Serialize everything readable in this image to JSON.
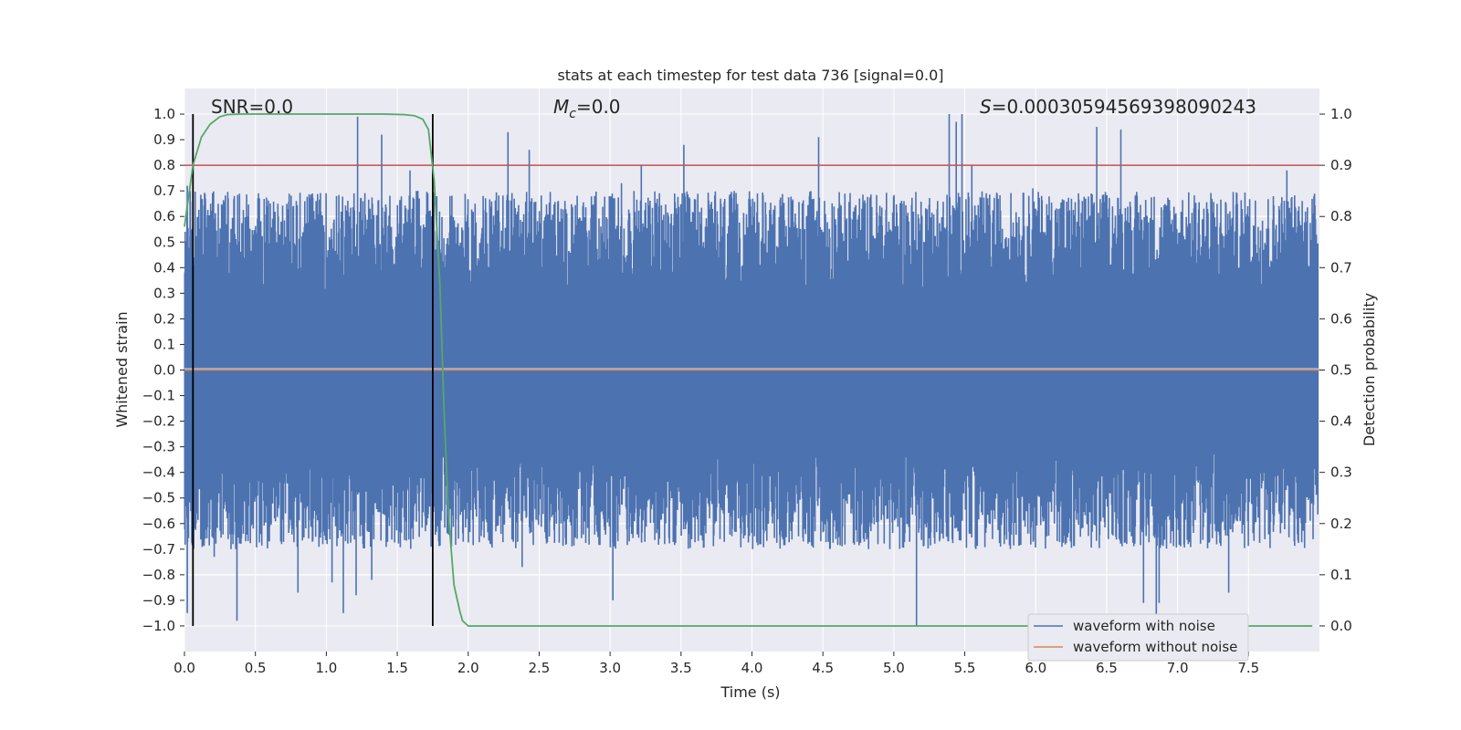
{
  "chart_data": {
    "type": "line",
    "title": "stats at each timestep for test data 736 [signal=0.0]",
    "xlabel": "Time (s)",
    "ylabel": "Whitened strain",
    "y2label": "Detection probability",
    "xlim": [
      0.0,
      8.0
    ],
    "ylim": [
      -1.1,
      1.1
    ],
    "y2lim": [
      -0.05,
      1.05
    ],
    "xticks": [
      "0.0",
      "0.5",
      "1.0",
      "1.5",
      "2.0",
      "2.5",
      "3.0",
      "3.5",
      "4.0",
      "4.5",
      "5.0",
      "5.5",
      "6.0",
      "6.5",
      "7.0",
      "7.5"
    ],
    "xtick_values": [
      0.0,
      0.5,
      1.0,
      1.5,
      2.0,
      2.5,
      3.0,
      3.5,
      4.0,
      4.5,
      5.0,
      5.5,
      6.0,
      6.5,
      7.0,
      7.5
    ],
    "yticks": [
      "1.0",
      "0.9",
      "0.8",
      "0.7",
      "0.6",
      "0.5",
      "0.4",
      "0.3",
      "0.2",
      "0.1",
      "0.0",
      "−0.1",
      "−0.2",
      "−0.3",
      "−0.4",
      "−0.5",
      "−0.6",
      "−0.7",
      "−0.8",
      "−0.9",
      "−1.0"
    ],
    "ytick_values": [
      1.0,
      0.9,
      0.8,
      0.7,
      0.6,
      0.5,
      0.4,
      0.3,
      0.2,
      0.1,
      0.0,
      -0.1,
      -0.2,
      -0.3,
      -0.4,
      -0.5,
      -0.6,
      -0.7,
      -0.8,
      -0.9,
      -1.0
    ],
    "y2ticks": [
      "1.0",
      "0.9",
      "0.8",
      "0.7",
      "0.6",
      "0.5",
      "0.4",
      "0.3",
      "0.2",
      "0.1",
      "0.0"
    ],
    "y2tick_values": [
      1.0,
      0.9,
      0.8,
      0.7,
      0.6,
      0.5,
      0.4,
      0.3,
      0.2,
      0.1,
      0.0
    ],
    "annotations": {
      "snr": "SNR=0.0",
      "mc_symbol": "M",
      "mc_sub": "c",
      "mc_value": "=0.0",
      "s_symbol": "S",
      "s_value": "=0.0003059456939809​0243"
    },
    "legend": {
      "placement": "bottom-right",
      "entries": [
        "waveform with noise",
        "waveform without noise"
      ]
    },
    "threshold": {
      "value": 0.9,
      "axis": "y2",
      "color": "#c44e52"
    },
    "vlines": [
      0.06,
      1.75
    ],
    "probability_curve": {
      "x": [
        0.0,
        0.06,
        0.12,
        0.18,
        0.25,
        0.3,
        0.4,
        0.6,
        0.8,
        1.0,
        1.2,
        1.4,
        1.55,
        1.62,
        1.68,
        1.72,
        1.76,
        1.8,
        1.83,
        1.86,
        1.9,
        1.94,
        1.96,
        2.0,
        2.2,
        3.0,
        4.0,
        5.0,
        6.0,
        7.0,
        7.95
      ],
      "y": [
        0.78,
        0.9,
        0.955,
        0.98,
        0.995,
        0.999,
        1.0,
        1.0,
        1.0,
        1.0,
        1.0,
        1.0,
        0.999,
        0.997,
        0.99,
        0.97,
        0.87,
        0.67,
        0.42,
        0.22,
        0.08,
        0.03,
        0.01,
        0.0,
        0.0,
        0.0,
        0.0,
        0.0,
        0.0,
        0.0,
        0.0
      ]
    },
    "series": [
      {
        "name": "waveform with noise",
        "color": "#4c72b0",
        "pos_range": [
          0.3,
          0.7
        ],
        "neg_range": [
          -0.7,
          -0.3
        ],
        "seed": 736
      },
      {
        "name": "waveform without noise",
        "color": "#dd8452",
        "values_constant": 0.0
      }
    ],
    "peaks": [
      [
        0.02,
        0.72
      ],
      [
        0.04,
        0.7
      ],
      [
        0.02,
        -0.95
      ],
      [
        0.37,
        -0.98
      ],
      [
        0.8,
        -0.87
      ],
      [
        1.12,
        -0.95
      ],
      [
        1.22,
        0.99
      ],
      [
        1.21,
        -0.88
      ],
      [
        1.39,
        0.92
      ],
      [
        1.32,
        -0.82
      ],
      [
        1.73,
        0.62
      ],
      [
        2.28,
        0.93
      ],
      [
        2.38,
        -0.77
      ],
      [
        3.02,
        -0.9
      ],
      [
        3.22,
        0.8
      ],
      [
        3.52,
        0.88
      ],
      [
        4.47,
        0.91
      ],
      [
        5.16,
        -0.93
      ],
      [
        5.16,
        -1.0
      ],
      [
        5.39,
        1.0
      ],
      [
        5.44,
        0.97
      ],
      [
        5.48,
        1.0
      ],
      [
        5.55,
        0.8
      ],
      [
        6.43,
        0.95
      ],
      [
        6.6,
        0.94
      ],
      [
        6.76,
        -0.91
      ],
      [
        6.85,
        -0.96
      ],
      [
        6.87,
        -0.91
      ],
      [
        7.36,
        -0.87
      ],
      [
        7.77,
        0.78
      ],
      [
        2.43,
        0.86
      ],
      [
        3.08,
        0.73
      ],
      [
        5.98,
        0.71
      ],
      [
        1.59,
        0.78
      ],
      [
        1.04,
        -0.83
      ],
      [
        0.21,
        -0.73
      ]
    ]
  }
}
